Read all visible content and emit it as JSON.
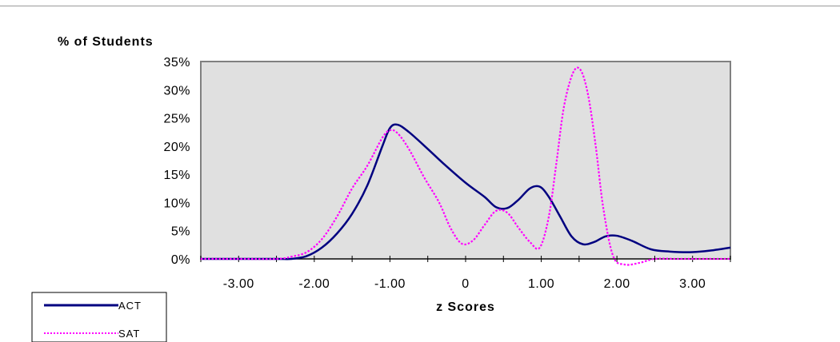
{
  "chart_data": {
    "type": "line",
    "title": "",
    "ylabel": "% of Students",
    "xlabel": "z Scores",
    "xlim": [
      -3.5,
      3.5
    ],
    "ylim": [
      0,
      35
    ],
    "x_ticks": [
      -3,
      -2,
      -1,
      0,
      1,
      2,
      3
    ],
    "x_tick_labels": [
      "-3.00",
      "-2.00",
      "-1.00",
      "0",
      "1.00",
      "2.00",
      "3.00"
    ],
    "y_ticks": [
      0,
      5,
      10,
      15,
      20,
      25,
      30,
      35
    ],
    "y_tick_labels": [
      "0%",
      "5%",
      "10%",
      "15%",
      "20%",
      "25%",
      "30%",
      "35%"
    ],
    "grid": false,
    "plot_background": "#e0e0e0",
    "legend_position": "bottom-left",
    "series": [
      {
        "name": "ACT",
        "color": "#000080",
        "style": "solid",
        "x": [
          -3.5,
          -3.0,
          -2.5,
          -2.3,
          -2.1,
          -1.9,
          -1.7,
          -1.5,
          -1.3,
          -1.1,
          -1.0,
          -0.9,
          -0.75,
          -0.5,
          -0.3,
          0,
          0.25,
          0.4,
          0.55,
          0.7,
          0.85,
          0.98,
          1.1,
          1.25,
          1.4,
          1.55,
          1.7,
          1.85,
          2.0,
          2.2,
          2.45,
          2.7,
          3.0,
          3.25,
          3.5
        ],
        "y": [
          0,
          0,
          0,
          0,
          0.5,
          2,
          4.5,
          8,
          13,
          20,
          23.2,
          23.8,
          22.5,
          19.5,
          17,
          13.5,
          11,
          9.2,
          9,
          10.5,
          12.5,
          12.8,
          11,
          7.5,
          4,
          2.6,
          3,
          4,
          4.1,
          3.2,
          1.7,
          1.3,
          1.2,
          1.5,
          2
        ]
      },
      {
        "name": "SAT",
        "color": "#ff00ff",
        "style": "dotted",
        "x": [
          -3.5,
          -3.0,
          -2.5,
          -2.3,
          -2.1,
          -1.9,
          -1.7,
          -1.5,
          -1.3,
          -1.1,
          -1.0,
          -0.9,
          -0.75,
          -0.55,
          -0.35,
          -0.2,
          -0.05,
          0.1,
          0.25,
          0.4,
          0.55,
          0.7,
          0.85,
          0.98,
          1.1,
          1.2,
          1.3,
          1.42,
          1.52,
          1.62,
          1.72,
          1.82,
          1.95,
          2.1,
          2.3,
          2.5,
          2.8,
          3.2,
          3.5
        ],
        "y": [
          0,
          0,
          0,
          0.4,
          1.2,
          3.5,
          7.5,
          12.5,
          16.5,
          21.5,
          22.8,
          22.3,
          19.5,
          14.5,
          10,
          5.5,
          2.7,
          3.3,
          6,
          8.5,
          8.2,
          5.5,
          3,
          2,
          7.5,
          17,
          27,
          33,
          33.5,
          29,
          20,
          9,
          0.5,
          -1,
          -0.7,
          0,
          0,
          0,
          0
        ]
      }
    ]
  }
}
